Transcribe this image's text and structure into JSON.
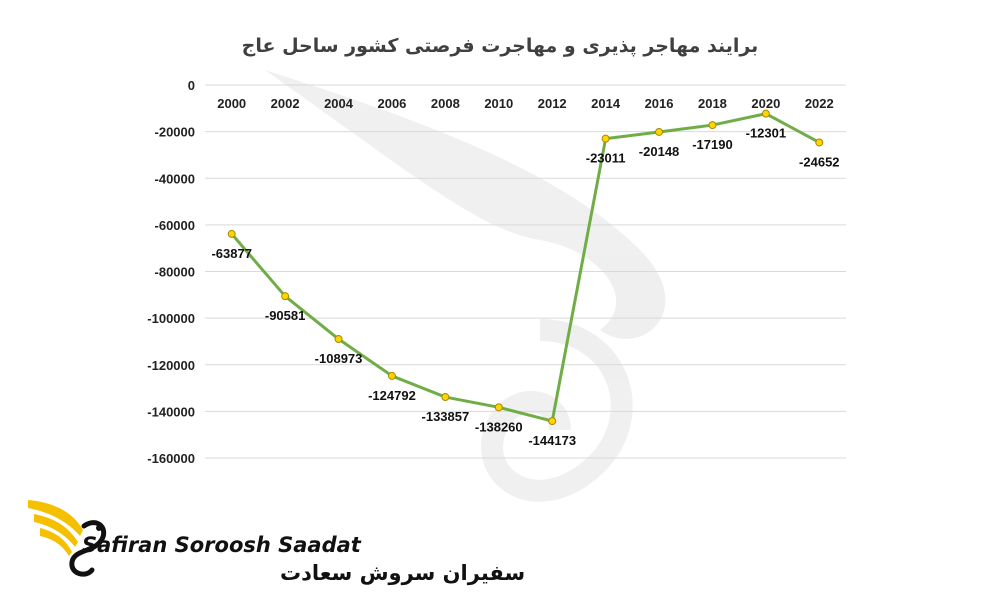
{
  "chart_data": {
    "type": "line",
    "title": "برایند مهاجر پذیری و مهاجرت فرصتی کشور ساحل عاج",
    "xlabel": "",
    "ylabel": "",
    "x": [
      "2000",
      "2002",
      "2004",
      "2006",
      "2008",
      "2010",
      "2012",
      "2014",
      "2016",
      "2018",
      "2020",
      "2022"
    ],
    "series": [
      {
        "values": [
          -63877,
          -90581,
          -108973,
          -124792,
          -133857,
          -138260,
          -144173,
          -23011,
          -20148,
          -17190,
          -12301,
          -24652
        ]
      }
    ],
    "y_ticks": [
      0,
      -20000,
      -40000,
      -60000,
      -80000,
      -100000,
      -120000,
      -140000,
      -160000
    ],
    "ylim": [
      -160000,
      0
    ],
    "grid": true,
    "x_axis_position": "top",
    "colors": {
      "line": "#70ad47",
      "marker": "#ffd400",
      "grid": "#d9d9d9"
    }
  },
  "branding": {
    "name_en": "Safiran Soroosh Saadat",
    "name_fa": "سفیران سروش سعادت",
    "logo_icon": "bird-wing-logo-icon",
    "colors": {
      "wing": "#f4c000",
      "text": "#111111"
    }
  }
}
